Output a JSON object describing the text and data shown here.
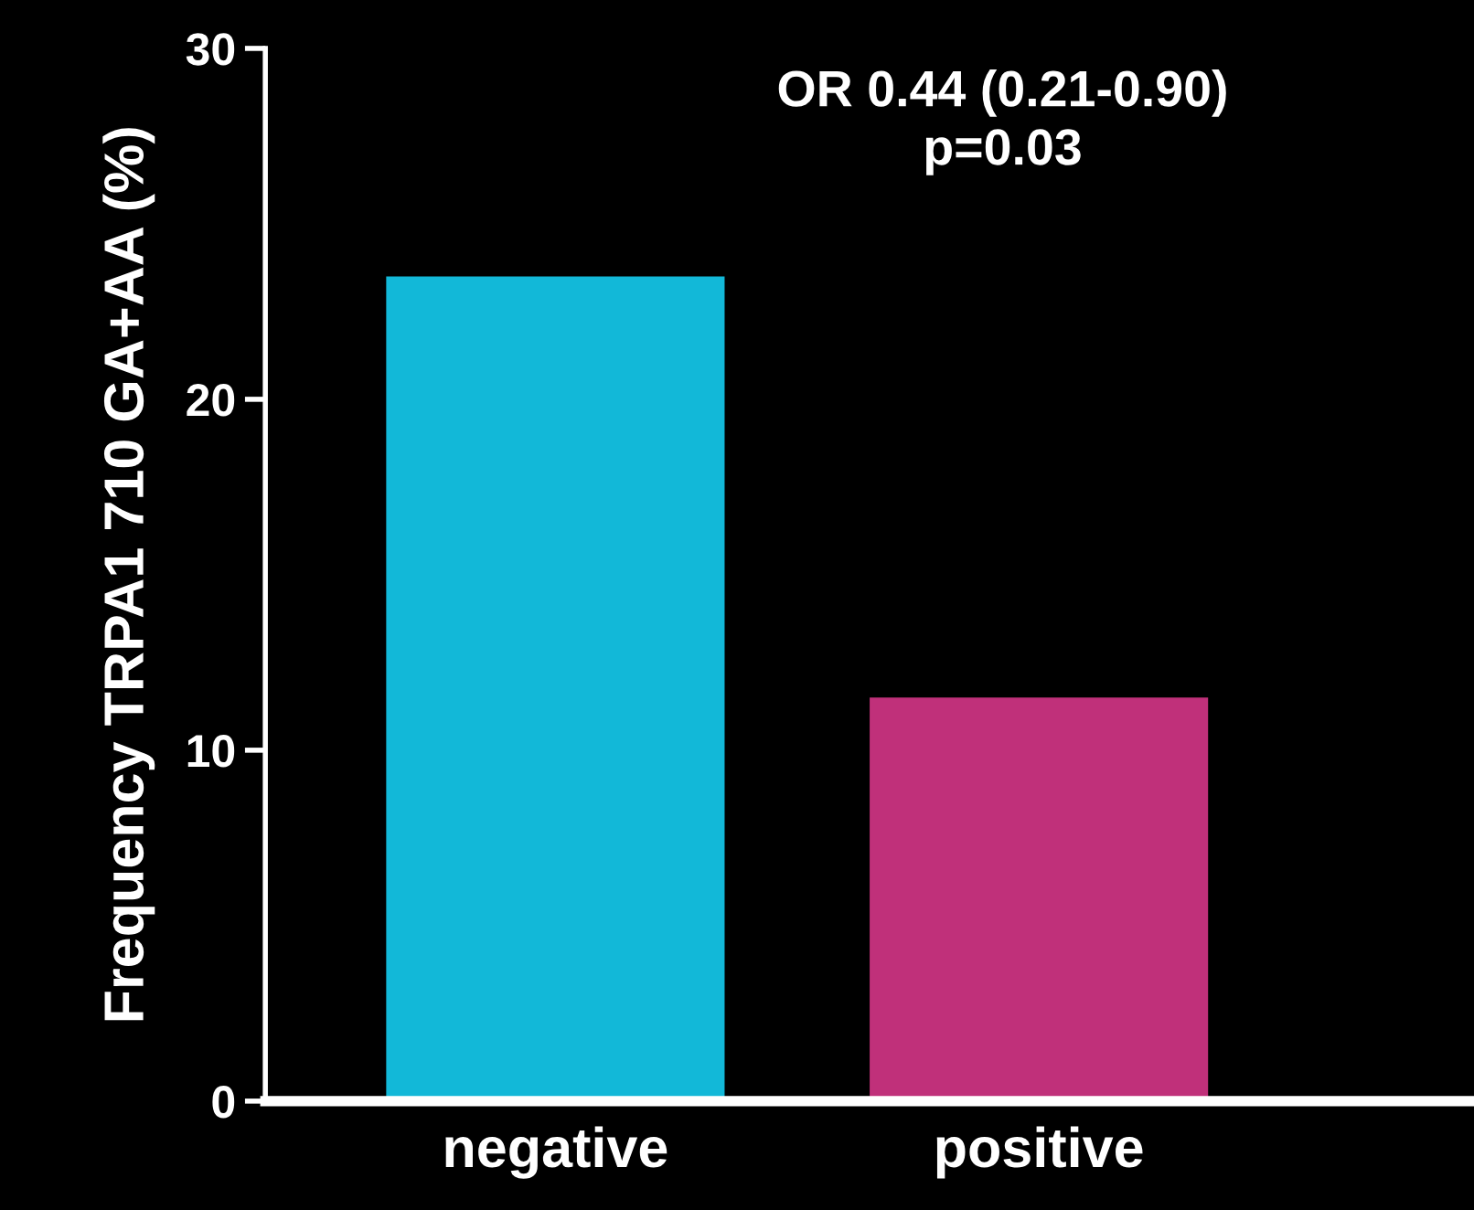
{
  "chart_data": {
    "type": "bar",
    "title": "OR 0.44 (0.21-0.90)\np=0.03",
    "ylabel": "Frequency TRPA1 710 GA+AA (%)",
    "categories": [
      "negative",
      "positive"
    ],
    "values": [
      23.5,
      11.5
    ],
    "colors": [
      "#12b8d8",
      "#c0307a"
    ],
    "ylim": [
      0,
      30
    ],
    "yticks": [
      0,
      10,
      20,
      30
    ],
    "grid": false
  }
}
